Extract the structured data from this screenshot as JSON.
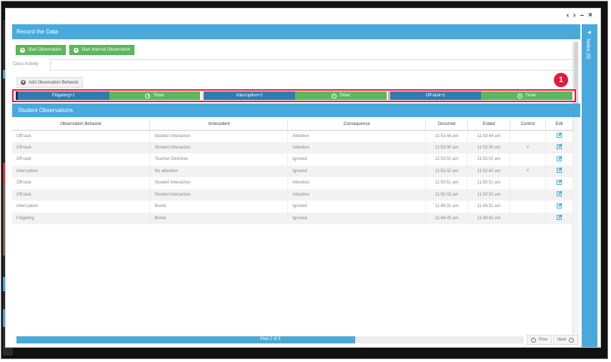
{
  "window": {
    "controls": [
      "‹",
      "›",
      "–",
      "×"
    ]
  },
  "header": {
    "title": "Record the Data"
  },
  "notes_panel": {
    "label": "Notes (0)",
    "arrow": "◀"
  },
  "buttons": {
    "start_observation": "Start Observation",
    "start_interval_observation": "Start Interval Observation",
    "add_observation_behavior": "Add Observation Behavior"
  },
  "class_activity": {
    "label": "Class Activity",
    "value": ""
  },
  "callout": {
    "number": "1",
    "color": "#e31b3a"
  },
  "behaviors": [
    {
      "label": "Fidgeting+1",
      "timer_label": "Timer"
    },
    {
      "label": "Interruption+1",
      "timer_label": "Timer"
    },
    {
      "label": "Off-task+1",
      "timer_label": "Timer"
    }
  ],
  "observations": {
    "title": "Student Observations",
    "columns": [
      "Observation Behavior",
      "Antecedent",
      "Consequence",
      "Occurred",
      "Ended",
      "Control",
      "Edit"
    ],
    "rows": [
      [
        "Off-task",
        "Student Interaction",
        "Attention",
        "11:53:44 am",
        "11:53:44 am",
        ""
      ],
      [
        "Off-task",
        "Student Interaction",
        "Attention",
        "11:53:30 am",
        "11:53:30 am",
        "Y"
      ],
      [
        "Off-task",
        "Teacher Directive",
        "Ignored",
        "11:53:02 am",
        "11:53:02 am",
        ""
      ],
      [
        "Interruption",
        "No attention",
        "Ignored",
        "11:52:42 am",
        "11:52:42 am",
        "Y"
      ],
      [
        "Off-task",
        "Student Interaction",
        "Attention",
        "11:50:51 am",
        "11:50:51 am",
        ""
      ],
      [
        "Off-task",
        "Student Interaction",
        "Attention",
        "11:50:02 am",
        "11:50:02 am",
        ""
      ],
      [
        "Interruption",
        "Bored",
        "Ignored",
        "11:49:31 am",
        "11:49:31 am",
        ""
      ],
      [
        "Fidgeting",
        "Bored",
        "Ignored",
        "11:48:42 am",
        "11:48:42 am",
        ""
      ]
    ]
  },
  "progress": {
    "label": "Step 2 of 3",
    "fraction": 0.667
  },
  "nav": {
    "prev": "Prev",
    "next": "Next"
  },
  "colors": {
    "accent_blue": "#4aa9dc",
    "behavior_blue": "#2f7dad",
    "green": "#5cb85c"
  }
}
